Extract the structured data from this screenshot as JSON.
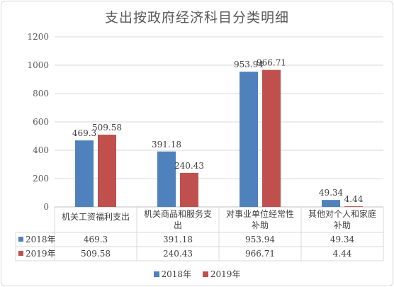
{
  "chart_data": {
    "type": "bar",
    "title": "支出按政府经济科目分类明细",
    "categories": [
      "机关工资福利支出",
      "机关商品和服务支出",
      "对事业单位经常性补助",
      "其他对个人和家庭补助"
    ],
    "category_lines": [
      [
        "机关工资福利支出"
      ],
      [
        "机关商品和服务支",
        "出"
      ],
      [
        "对事业单位经常性",
        "补助"
      ],
      [
        "其他对个人和家庭",
        "补助"
      ]
    ],
    "series": [
      {
        "name": "2018年",
        "color": "#4f81bd",
        "values": [
          469.3,
          391.18,
          953.94,
          49.34
        ],
        "labels": [
          "469.3",
          "391.18",
          "953.94",
          "49.34"
        ]
      },
      {
        "name": "2019年",
        "color": "#c0504d",
        "values": [
          509.58,
          240.43,
          966.71,
          4.44
        ],
        "labels": [
          "509.58",
          "240.43",
          "966.71",
          "4.44"
        ]
      }
    ],
    "ylim": [
      0,
      1200
    ],
    "yticks": [
      "0",
      "200",
      "400",
      "600",
      "800",
      "1000",
      "1200"
    ],
    "grid": true,
    "legend_position": "bottom",
    "data_table": true
  }
}
